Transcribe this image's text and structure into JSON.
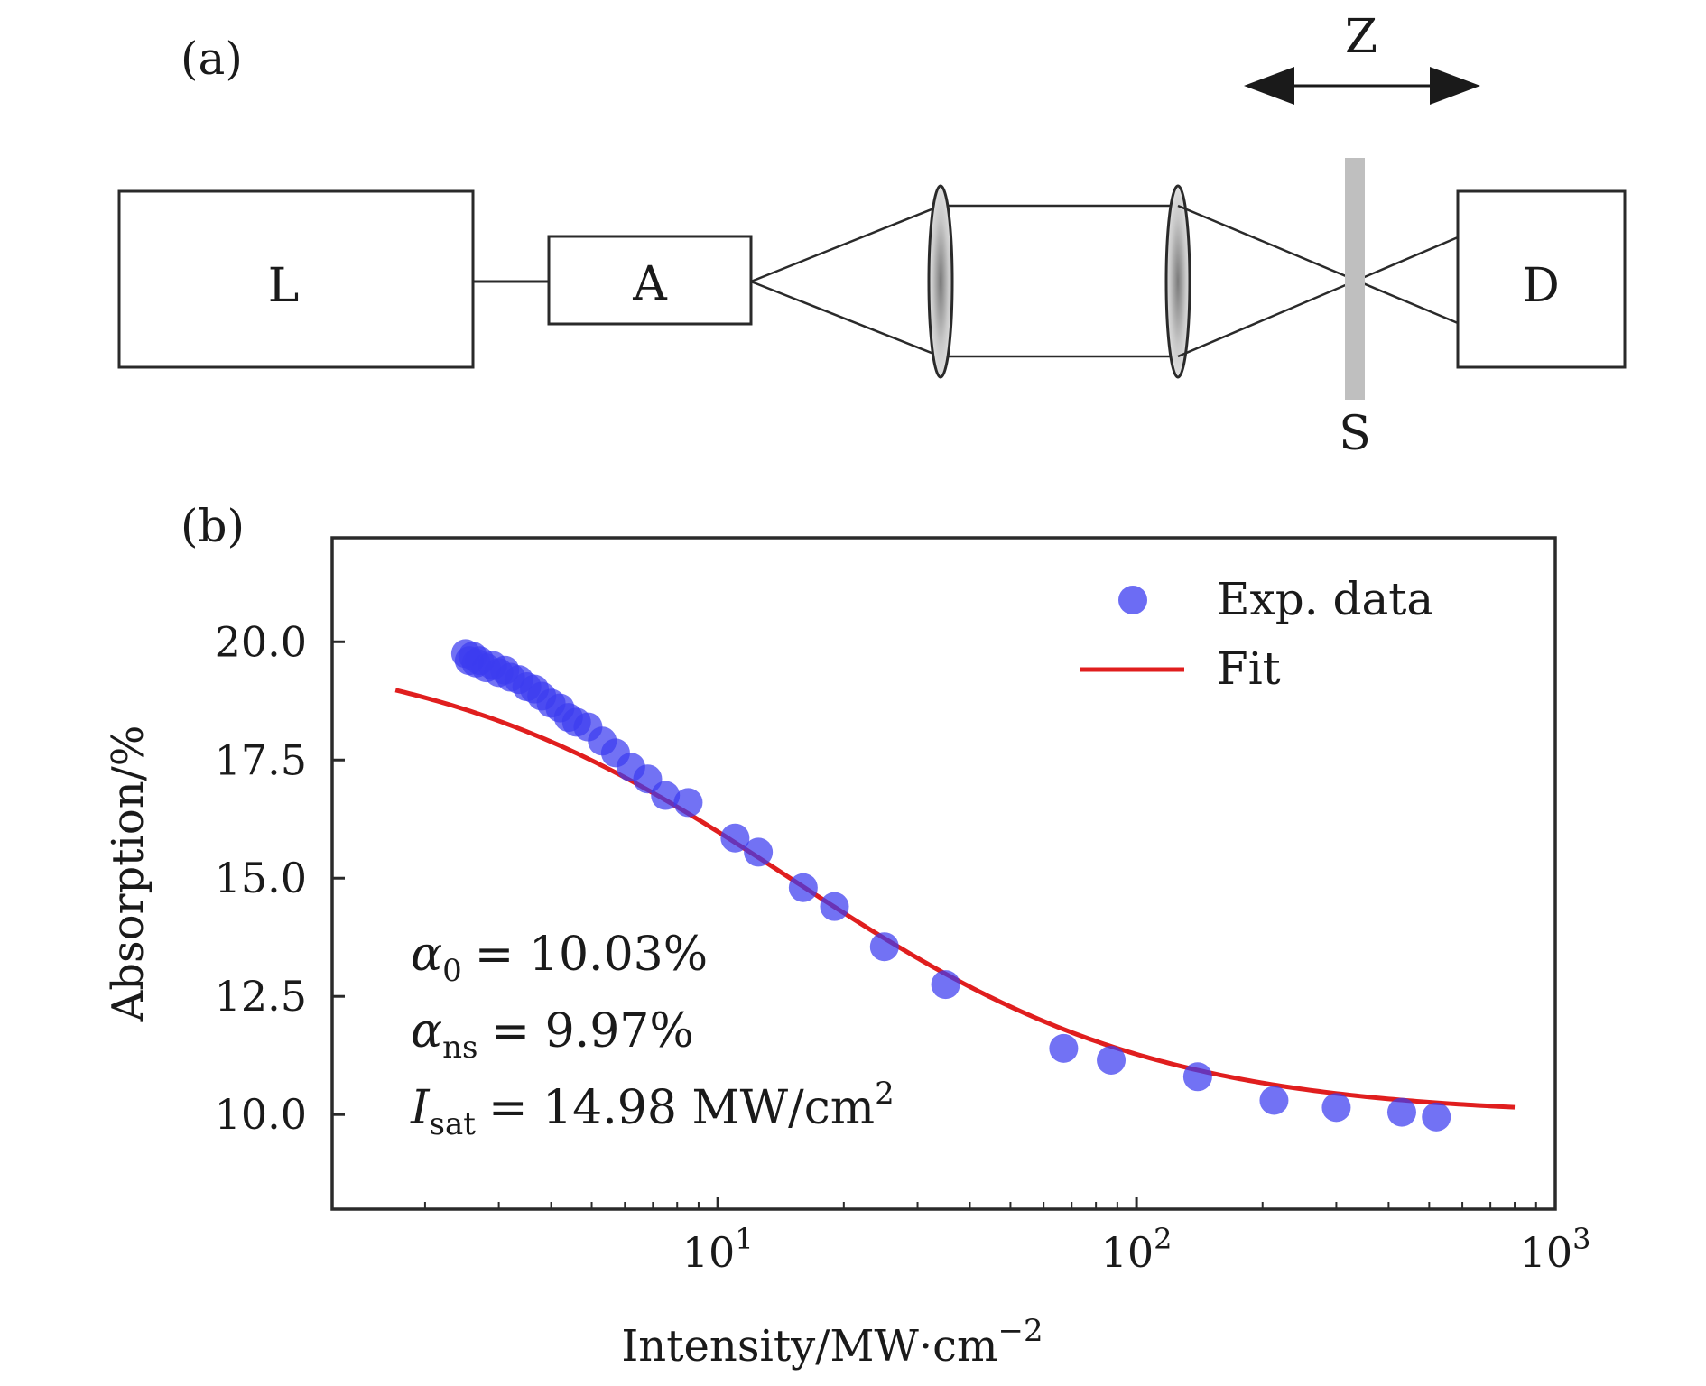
{
  "panel_a": {
    "label": "(a)",
    "components": {
      "laser": "L",
      "attenuator": "A",
      "detector": "D",
      "sample": "S",
      "translation": "Z"
    }
  },
  "panel_b": {
    "label": "(b)",
    "parameters": {
      "alpha0_symbol": "α",
      "alpha0_sub": "0",
      "alpha0_value": "= 10.03%",
      "alphans_symbol": "α",
      "alphans_sub": "ns",
      "alphans_value": "= 9.97%",
      "isat_symbol": "I",
      "isat_sub": "sat",
      "isat_value": "= 14.98 MW/cm",
      "isat_sup": "2"
    }
  },
  "colors": {
    "data_points": "#3b3bf0",
    "fit_line": "#e01e1e",
    "sample_bar": "#bfbfbf",
    "axes": "#2a2a2a"
  },
  "chart_data": {
    "type": "scatter",
    "xscale": "log",
    "xlim": [
      1.2,
      1000
    ],
    "ylim": [
      8.0,
      22.2
    ],
    "xlabel": "Intensity/MW·cm",
    "xlabel_sup": "−2",
    "ylabel": "Absorption/%",
    "x_ticks": [
      {
        "value": 10,
        "base": "10",
        "exp": "1"
      },
      {
        "value": 100,
        "base": "10",
        "exp": "2"
      },
      {
        "value": 1000,
        "base": "10",
        "exp": "3"
      }
    ],
    "y_ticks": [
      {
        "value": 10.0,
        "label": "10.0"
      },
      {
        "value": 12.5,
        "label": "12.5"
      },
      {
        "value": 15.0,
        "label": "15.0"
      },
      {
        "value": 17.5,
        "label": "17.5"
      },
      {
        "value": 20.0,
        "label": "20.0"
      }
    ],
    "legend": {
      "position": "top-right",
      "entries": [
        "Exp. data",
        "Fit"
      ]
    },
    "series": [
      {
        "name": "Exp. data",
        "kind": "scatter",
        "points": [
          [
            2.5,
            19.75
          ],
          [
            2.55,
            19.6
          ],
          [
            2.6,
            19.7
          ],
          [
            2.65,
            19.55
          ],
          [
            2.7,
            19.6
          ],
          [
            2.8,
            19.45
          ],
          [
            2.9,
            19.5
          ],
          [
            3.0,
            19.35
          ],
          [
            3.1,
            19.4
          ],
          [
            3.2,
            19.25
          ],
          [
            3.35,
            19.2
          ],
          [
            3.5,
            19.05
          ],
          [
            3.65,
            19.0
          ],
          [
            3.8,
            18.85
          ],
          [
            4.0,
            18.7
          ],
          [
            4.2,
            18.6
          ],
          [
            4.4,
            18.4
          ],
          [
            4.6,
            18.3
          ],
          [
            4.9,
            18.2
          ],
          [
            5.3,
            17.9
          ],
          [
            5.7,
            17.65
          ],
          [
            6.2,
            17.35
          ],
          [
            6.8,
            17.1
          ],
          [
            7.5,
            16.75
          ],
          [
            8.5,
            16.6
          ],
          [
            11.0,
            15.85
          ],
          [
            12.5,
            15.55
          ],
          [
            16.0,
            14.8
          ],
          [
            19.0,
            14.4
          ],
          [
            25.0,
            13.55
          ],
          [
            35.0,
            12.75
          ],
          [
            67.0,
            11.4
          ],
          [
            87.0,
            11.15
          ],
          [
            140.0,
            10.8
          ],
          [
            213.0,
            10.3
          ],
          [
            300.0,
            10.15
          ],
          [
            430.0,
            10.05
          ],
          [
            520.0,
            9.95
          ]
        ]
      },
      {
        "name": "Fit",
        "kind": "line",
        "model": "alpha_ns + alpha_0 / (1 + I / I_sat)",
        "alpha_0": 10.03,
        "alpha_ns": 9.97,
        "I_sat": 14.98,
        "x_range": [
          1.7,
          800
        ]
      }
    ]
  }
}
